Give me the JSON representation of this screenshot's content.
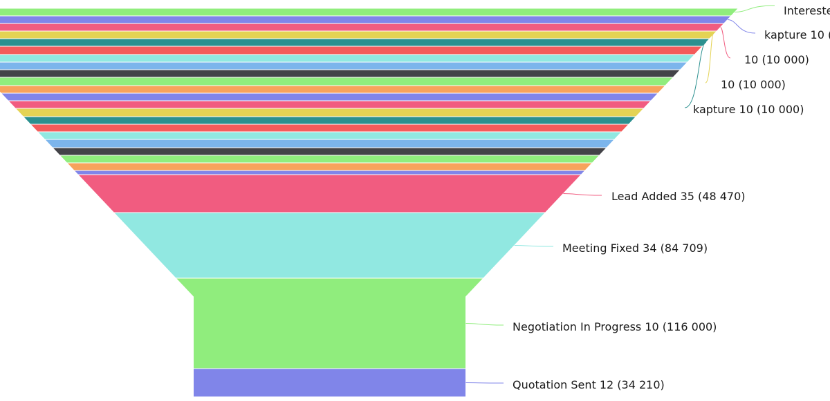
{
  "chart_data": {
    "type": "funnel",
    "stages": [
      {
        "color": "#90ed7d",
        "label": "Intereste"
      },
      {
        "color": "#8085e9",
        "label": "kapture 10 ("
      },
      {
        "color": "#f15c80",
        "label": "10 (10 000)"
      },
      {
        "color": "#e4d354",
        "label": "10 (10 000)"
      },
      {
        "color": "#2b908f",
        "label": "kapture 10 (10 000)"
      },
      {
        "color": "#f45b5b"
      },
      {
        "color": "#91e8e1"
      },
      {
        "color": "#7cb5ec"
      },
      {
        "color": "#434348"
      },
      {
        "color": "#90ed7d"
      },
      {
        "color": "#f7a35c"
      },
      {
        "color": "#8085e9"
      },
      {
        "color": "#f15c80"
      },
      {
        "color": "#e4d354"
      },
      {
        "color": "#2b908f"
      },
      {
        "color": "#f45b5b"
      },
      {
        "color": "#91e8e1"
      },
      {
        "color": "#7cb5ec"
      },
      {
        "color": "#434348"
      },
      {
        "color": "#90ed7d"
      },
      {
        "color": "#f7a35c"
      },
      {
        "color": "#8085e9"
      },
      {
        "color": "#f15c80",
        "label": "Lead Added 35 (48 470)",
        "count": 35,
        "value": 48470
      },
      {
        "color": "#91e8e1",
        "label": "Meeting Fixed 34 (84 709)",
        "count": 34,
        "value": 84709
      },
      {
        "color": "#90ed7d",
        "label": "Negotiation In Progress 10 (116 000)",
        "count": 10,
        "value": 116000
      },
      {
        "color": "#8085e9",
        "label": "Quotation Sent 12 (34 210)",
        "count": 12,
        "value": 34210
      }
    ]
  }
}
